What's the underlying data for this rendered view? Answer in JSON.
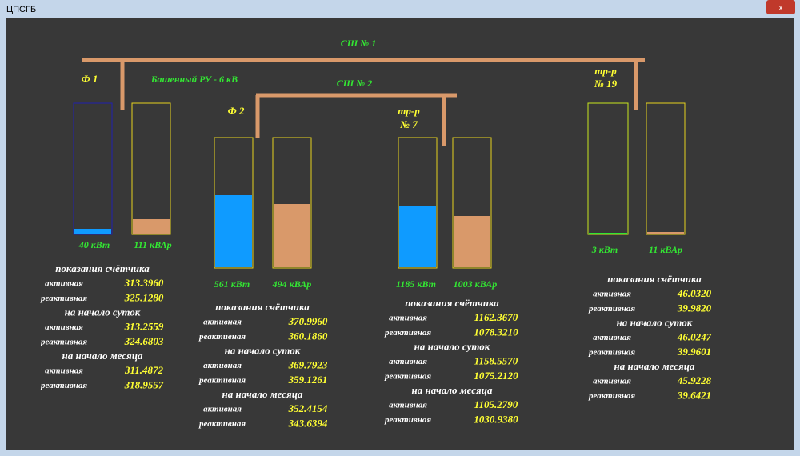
{
  "window": {
    "title": "ЦПСГБ"
  },
  "diagram": {
    "bus1": "СШ № 1",
    "bus2": "СШ № 2",
    "f1": "Ф 1",
    "tower": "Башенный РУ - 6 кВ",
    "f2": "Ф 2",
    "t7": [
      "тр-р",
      "№ 7"
    ],
    "t19": [
      "тр-р",
      "№ 19"
    ]
  },
  "bars": [
    {
      "label": "40 кВт"
    },
    {
      "label": "111 кВАр"
    },
    {
      "label": "561 кВт"
    },
    {
      "label": "494 кВАр"
    },
    {
      "label": "1185 кВт"
    },
    {
      "label": "1003 кВАр"
    },
    {
      "label": "3 кВт"
    },
    {
      "label": "11 кВАр"
    }
  ],
  "meters": [
    {
      "sections": [
        {
          "title": "показания счётчика",
          "rows": [
            {
              "label": "активная",
              "value": "313.3960"
            },
            {
              "label": "реактивная",
              "value": "325.1280"
            }
          ]
        },
        {
          "title": "на начало суток",
          "rows": [
            {
              "label": "активная",
              "value": "313.2559"
            },
            {
              "label": "реактивная",
              "value": "324.6803"
            }
          ]
        },
        {
          "title": "на начало месяца",
          "rows": [
            {
              "label": "активная",
              "value": "311.4872"
            },
            {
              "label": "реактивная",
              "value": "318.9557"
            }
          ]
        }
      ]
    },
    {
      "sections": [
        {
          "title": "показания счётчика",
          "rows": [
            {
              "label": "активная",
              "value": "370.9960"
            },
            {
              "label": "реактивная",
              "value": "360.1860"
            }
          ]
        },
        {
          "title": "на начало суток",
          "rows": [
            {
              "label": "активная",
              "value": "369.7923"
            },
            {
              "label": "реактивная",
              "value": "359.1261"
            }
          ]
        },
        {
          "title": "на начало месяца",
          "rows": [
            {
              "label": "активная",
              "value": "352.4154"
            },
            {
              "label": "реактивная",
              "value": "343.6394"
            }
          ]
        }
      ]
    },
    {
      "sections": [
        {
          "title": "показания счётчика",
          "rows": [
            {
              "label": "активная",
              "value": "1162.3670"
            },
            {
              "label": "реактивная",
              "value": "1078.3210"
            }
          ]
        },
        {
          "title": "на начало суток",
          "rows": [
            {
              "label": "активная",
              "value": "1158.5570"
            },
            {
              "label": "реактивная",
              "value": "1075.2120"
            }
          ]
        },
        {
          "title": "на начало месяца",
          "rows": [
            {
              "label": "активная",
              "value": "1105.2790"
            },
            {
              "label": "реактивная",
              "value": "1030.9380"
            }
          ]
        }
      ]
    },
    {
      "sections": [
        {
          "title": "показания счётчика",
          "rows": [
            {
              "label": "активная",
              "value": "46.0320"
            },
            {
              "label": "реактивная",
              "value": "39.9820"
            }
          ]
        },
        {
          "title": "на начало суток",
          "rows": [
            {
              "label": "активная",
              "value": "46.0247"
            },
            {
              "label": "реактивная",
              "value": "39.9601"
            }
          ]
        },
        {
          "title": "на начало месяца",
          "rows": [
            {
              "label": "активная",
              "value": "45.9228"
            },
            {
              "label": "реактивная",
              "value": "39.6421"
            }
          ]
        }
      ]
    }
  ]
}
